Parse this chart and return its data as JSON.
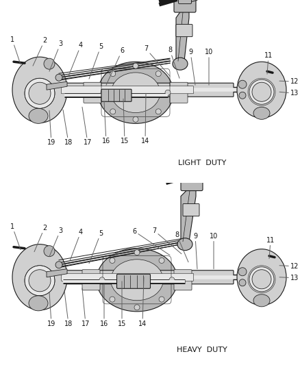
{
  "bg_color": "#ffffff",
  "line_color": "#1a1a1a",
  "gray1": "#d0d0d0",
  "gray2": "#b8b8b8",
  "gray3": "#e8e8e8",
  "title1": "LIGHT  DUTY",
  "title2": "HEAVY  DUTY",
  "title_fontsize": 8,
  "label_fontsize": 7,
  "figsize": [
    4.38,
    5.33
  ],
  "dpi": 100,
  "section_tops": [
    0.53,
    1.0
  ],
  "section_bottoms": [
    0.0,
    0.53
  ]
}
